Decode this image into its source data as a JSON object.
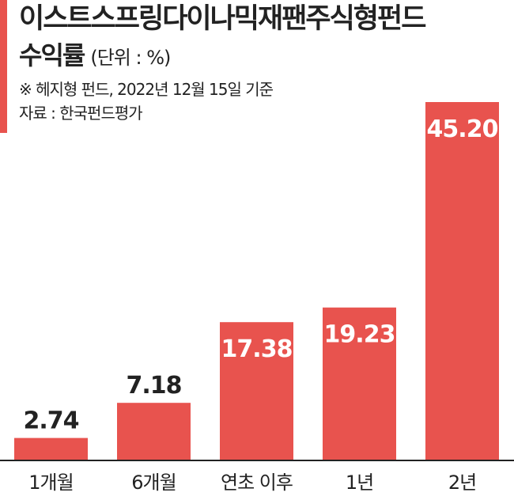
{
  "header": {
    "title_line1": "이스트스프링다이나믹재팬주식형펀드",
    "title_line2": "수익률",
    "unit": "(단위 : %)",
    "note": "※ 헤지형 펀드, 2022년 12월 15일 기준",
    "source": "자료 : 한국펀드평가"
  },
  "colors": {
    "bar": "#e8534e",
    "accent": "#e8534e",
    "axis": "#222222"
  },
  "chart_data": {
    "type": "bar",
    "title": "이스트스프링다이나믹재팬주식형펀드 수익률",
    "unit": "(단위 : %)",
    "categories": [
      "1개월",
      "6개월",
      "연초 이후",
      "1년",
      "2년"
    ],
    "values": [
      2.74,
      7.18,
      17.38,
      19.23,
      45.2
    ],
    "value_labels": [
      "2.74",
      "7.18",
      "17.38",
      "19.23",
      "45.20"
    ],
    "ylim": [
      0,
      47.7
    ],
    "grid": false,
    "legend": "none"
  }
}
